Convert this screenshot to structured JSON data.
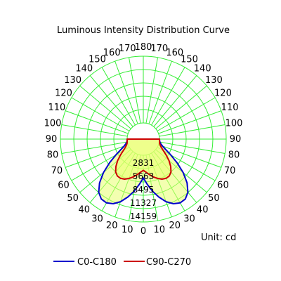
{
  "chart_data": {
    "type": "polar",
    "title": "Luminous Intensity Distribution Curve",
    "unit_label": "Unit: cd",
    "grid": true,
    "radial_ticks": [
      2831,
      5663,
      8495,
      11327,
      14159
    ],
    "radial_max": 14159,
    "angle_ticks_left": [
      "0",
      "10",
      "20",
      "30",
      "40",
      "50",
      "60",
      "70",
      "80",
      "90",
      "100",
      "110",
      "120",
      "130",
      "140",
      "150",
      "160",
      "170",
      "180"
    ],
    "angle_ticks_right": [
      "10",
      "20",
      "30",
      "40",
      "50",
      "60",
      "70",
      "80",
      "90",
      "100",
      "110",
      "120",
      "130",
      "140",
      "150",
      "160",
      "170"
    ],
    "angles": [
      0,
      5,
      10,
      15,
      20,
      25,
      30,
      35,
      40,
      45,
      50,
      55,
      60,
      65,
      70,
      75,
      80,
      85,
      90
    ],
    "series": [
      {
        "name": "C0-C180",
        "color": "#0000cc",
        "values": [
          4800,
          6200,
          7800,
          9300,
          10700,
          11700,
          12200,
          12100,
          11300,
          9700,
          7600,
          5300,
          3300,
          1800,
          900,
          400,
          150,
          50,
          0
        ]
      },
      {
        "name": "C90-C270",
        "color": "#cc0000",
        "values": [
          3200,
          3650,
          4250,
          4900,
          5450,
          5950,
          6200,
          6150,
          5700,
          4800,
          3700,
          2500,
          1500,
          800,
          400,
          150,
          50,
          20,
          0
        ]
      }
    ],
    "legend_position": "bottom-left"
  }
}
